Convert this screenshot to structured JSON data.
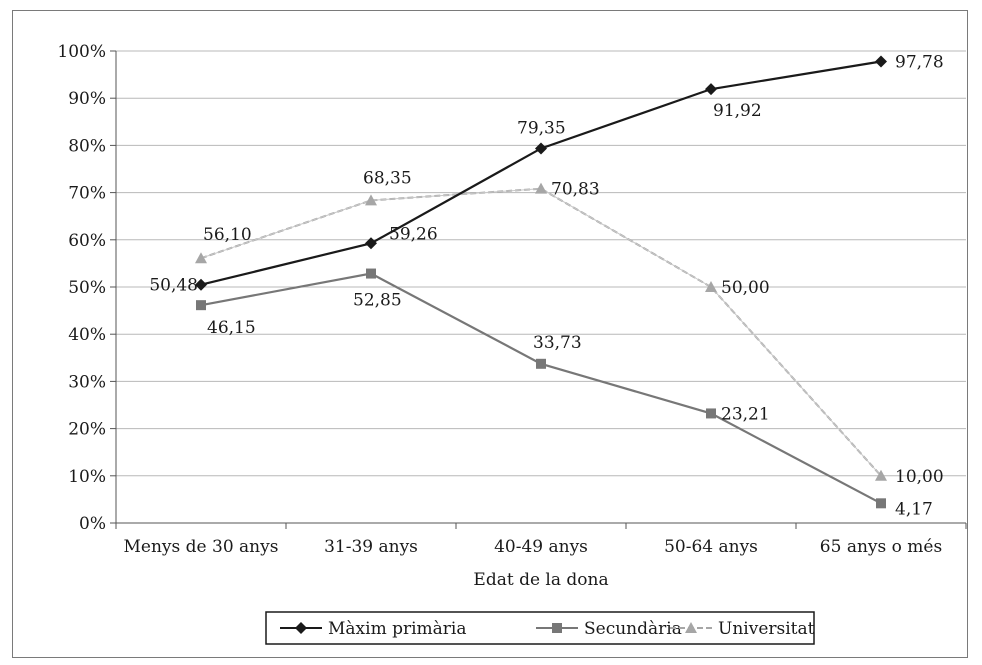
{
  "chart_data": {
    "type": "line",
    "title": "",
    "xlabel": "Edat de la dona",
    "ylabel": "",
    "categories": [
      "Menys de 30 anys",
      "31-39 anys",
      "40-49 anys",
      "50-64 anys",
      "65 anys o més"
    ],
    "ylim": [
      0,
      100
    ],
    "yticks": [
      0,
      10,
      20,
      30,
      40,
      50,
      60,
      70,
      80,
      90,
      100
    ],
    "ytick_labels": [
      "0%",
      "10%",
      "20%",
      "30%",
      "40%",
      "50%",
      "60%",
      "70%",
      "80%",
      "90%",
      "100%"
    ],
    "grid": "horizontal",
    "legend": "bottom",
    "series": [
      {
        "name": "Màxim primària",
        "values": [
          50.48,
          59.26,
          79.35,
          91.92,
          97.78
        ],
        "labels": [
          "50,48",
          "59,26",
          "79,35",
          "91,92",
          "97,78"
        ],
        "color": "#1a1a1a",
        "marker": "diamond",
        "dash": "solid"
      },
      {
        "name": "Secundària",
        "values": [
          46.15,
          52.85,
          33.73,
          23.21,
          4.17
        ],
        "labels": [
          "46,15",
          "52,85",
          "33,73",
          "23,21",
          "4,17"
        ],
        "color": "#777777",
        "marker": "square",
        "dash": "solid"
      },
      {
        "name": "Universitat",
        "values": [
          56.1,
          68.35,
          70.83,
          50.0,
          10.0
        ],
        "labels": [
          "56,10",
          "68,35",
          "70,83",
          "50,00",
          "10,00"
        ],
        "color": "#a6a6a6",
        "marker": "triangle",
        "dash": "dashed"
      }
    ]
  }
}
